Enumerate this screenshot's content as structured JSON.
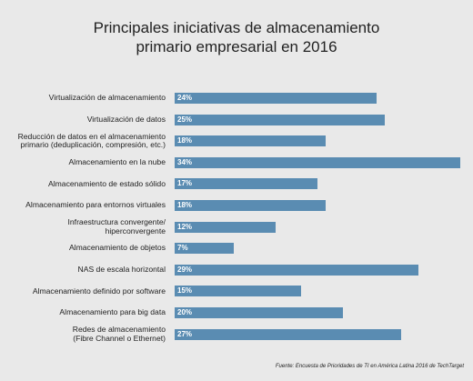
{
  "chart_data": {
    "type": "bar",
    "orientation": "horizontal",
    "title": "Principales iniciativas de almacenamiento\nprimario empresarial en 2016",
    "categories": [
      "Virtualización de almacenamiento",
      "Virtualización de datos",
      "Reducción de datos en el almacenamiento\nprimario (deduplicación, compresión, etc.)",
      "Almacenamiento en la nube",
      "Almacenamiento de estado sólido",
      "Almacenamiento para entornos virtuales",
      "Infraestructura convergente/\nhiperconvergente",
      "Almacenamiento de objetos",
      "NAS de escala horizontal",
      "Almacenamiento definido por software",
      "Almacenamiento para big data",
      "Redes de almacenamiento\n(Fibre Channel o Ethernet)"
    ],
    "values": [
      24,
      25,
      18,
      34,
      17,
      18,
      12,
      7,
      29,
      15,
      20,
      27
    ],
    "value_labels": [
      "24%",
      "25%",
      "18%",
      "34%",
      "17%",
      "18%",
      "12%",
      "7%",
      "29%",
      "15%",
      "20%",
      "27%"
    ],
    "color": "#5a8cb2",
    "source": "Fuente: Encuesta de Prioridades de TI en América Latina 2016 de TechTarget"
  }
}
